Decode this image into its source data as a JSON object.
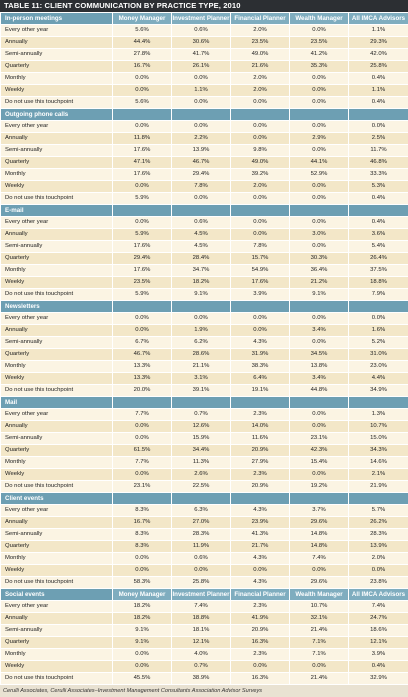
{
  "title": "TABLE 11: CLIENT COMMUNICATION BY PRACTICE TYPE, 2010",
  "columns": [
    "Money Manager",
    "Investment Planner",
    "Financial Planner",
    "Wealth Manager",
    "All IMCA Advisors"
  ],
  "sections": [
    {
      "name": "In-person meetings",
      "show_columns": true,
      "rows": [
        {
          "label": "Every other year",
          "values": [
            "5.6%",
            "0.6%",
            "2.0%",
            "0.0%",
            "1.1%"
          ]
        },
        {
          "label": "Annually",
          "values": [
            "44.4%",
            "30.6%",
            "23.5%",
            "23.5%",
            "29.3%"
          ]
        },
        {
          "label": "Semi-annually",
          "values": [
            "27.8%",
            "41.7%",
            "49.0%",
            "41.2%",
            "42.0%"
          ]
        },
        {
          "label": "Quarterly",
          "values": [
            "16.7%",
            "26.1%",
            "21.6%",
            "35.3%",
            "25.8%"
          ]
        },
        {
          "label": "Monthly",
          "values": [
            "0.0%",
            "0.0%",
            "2.0%",
            "0.0%",
            "0.4%"
          ]
        },
        {
          "label": "Weekly",
          "values": [
            "0.0%",
            "1.1%",
            "2.0%",
            "0.0%",
            "1.1%"
          ]
        },
        {
          "label": "Do not use this touchpoint",
          "values": [
            "5.6%",
            "0.0%",
            "0.0%",
            "0.0%",
            "0.4%"
          ]
        }
      ]
    },
    {
      "name": "Outgoing phone calls",
      "show_columns": false,
      "rows": [
        {
          "label": "Every other year",
          "values": [
            "0.0%",
            "0.0%",
            "0.0%",
            "0.0%",
            "0.0%"
          ]
        },
        {
          "label": "Annually",
          "values": [
            "11.8%",
            "2.2%",
            "0.0%",
            "2.9%",
            "2.5%"
          ]
        },
        {
          "label": "Semi-annually",
          "values": [
            "17.6%",
            "13.9%",
            "9.8%",
            "0.0%",
            "11.7%"
          ]
        },
        {
          "label": "Quarterly",
          "values": [
            "47.1%",
            "46.7%",
            "49.0%",
            "44.1%",
            "46.8%"
          ]
        },
        {
          "label": "Monthly",
          "values": [
            "17.6%",
            "29.4%",
            "39.2%",
            "52.9%",
            "33.3%"
          ]
        },
        {
          "label": "Weekly",
          "values": [
            "0.0%",
            "7.8%",
            "2.0%",
            "0.0%",
            "5.3%"
          ]
        },
        {
          "label": "Do not use this touchpoint",
          "values": [
            "5.9%",
            "0.0%",
            "0.0%",
            "0.0%",
            "0.4%"
          ]
        }
      ]
    },
    {
      "name": "E-mail",
      "show_columns": false,
      "rows": [
        {
          "label": "Every other year",
          "values": [
            "0.0%",
            "0.6%",
            "0.0%",
            "0.0%",
            "0.4%"
          ]
        },
        {
          "label": "Annually",
          "values": [
            "5.9%",
            "4.5%",
            "0.0%",
            "3.0%",
            "3.6%"
          ]
        },
        {
          "label": "Semi-annually",
          "values": [
            "17.6%",
            "4.5%",
            "7.8%",
            "0.0%",
            "5.4%"
          ]
        },
        {
          "label": "Quarterly",
          "values": [
            "29.4%",
            "28.4%",
            "15.7%",
            "30.3%",
            "26.4%"
          ]
        },
        {
          "label": "Monthly",
          "values": [
            "17.6%",
            "34.7%",
            "54.9%",
            "36.4%",
            "37.5%"
          ]
        },
        {
          "label": "Weekly",
          "values": [
            "23.5%",
            "18.2%",
            "17.6%",
            "21.2%",
            "18.8%"
          ]
        },
        {
          "label": "Do not use this touchpoint",
          "values": [
            "5.9%",
            "9.1%",
            "3.9%",
            "9.1%",
            "7.9%"
          ]
        }
      ]
    },
    {
      "name": "Newsletters",
      "show_columns": false,
      "rows": [
        {
          "label": "Every other year",
          "values": [
            "0.0%",
            "0.0%",
            "0.0%",
            "0.0%",
            "0.0%"
          ]
        },
        {
          "label": "Annually",
          "values": [
            "0.0%",
            "1.9%",
            "0.0%",
            "3.4%",
            "1.6%"
          ]
        },
        {
          "label": "Semi-annually",
          "values": [
            "6.7%",
            "6.2%",
            "4.3%",
            "0.0%",
            "5.2%"
          ]
        },
        {
          "label": "Quarterly",
          "values": [
            "46.7%",
            "28.6%",
            "31.9%",
            "34.5%",
            "31.0%"
          ]
        },
        {
          "label": "Monthly",
          "values": [
            "13.3%",
            "21.1%",
            "38.3%",
            "13.8%",
            "23.0%"
          ]
        },
        {
          "label": "Weekly",
          "values": [
            "13.3%",
            "3.1%",
            "6.4%",
            "3.4%",
            "4.4%"
          ]
        },
        {
          "label": "Do not use this touchpoint",
          "values": [
            "20.0%",
            "39.1%",
            "19.1%",
            "44.8%",
            "34.9%"
          ]
        }
      ]
    },
    {
      "name": "Mail",
      "show_columns": false,
      "rows": [
        {
          "label": "Every other year",
          "values": [
            "7.7%",
            "0.7%",
            "2.3%",
            "0.0%",
            "1.3%"
          ]
        },
        {
          "label": "Annually",
          "values": [
            "0.0%",
            "12.6%",
            "14.0%",
            "0.0%",
            "10.7%"
          ]
        },
        {
          "label": "Semi-annually",
          "values": [
            "0.0%",
            "15.9%",
            "11.6%",
            "23.1%",
            "15.0%"
          ]
        },
        {
          "label": "Quarterly",
          "values": [
            "61.5%",
            "34.4%",
            "20.9%",
            "42.3%",
            "34.3%"
          ]
        },
        {
          "label": "Monthly",
          "values": [
            "7.7%",
            "11.3%",
            "27.9%",
            "15.4%",
            "14.6%"
          ]
        },
        {
          "label": "Weekly",
          "values": [
            "0.0%",
            "2.6%",
            "2.3%",
            "0.0%",
            "2.1%"
          ]
        },
        {
          "label": "Do not use this touchpoint",
          "values": [
            "23.1%",
            "22.5%",
            "20.9%",
            "19.2%",
            "21.9%"
          ]
        }
      ]
    },
    {
      "name": "Client events",
      "show_columns": false,
      "rows": [
        {
          "label": "Every other year",
          "values": [
            "8.3%",
            "6.3%",
            "4.3%",
            "3.7%",
            "5.7%"
          ]
        },
        {
          "label": "Annually",
          "values": [
            "16.7%",
            "27.0%",
            "23.9%",
            "29.6%",
            "26.2%"
          ]
        },
        {
          "label": "Semi-annually",
          "values": [
            "8.3%",
            "28.3%",
            "41.3%",
            "14.8%",
            "28.3%"
          ]
        },
        {
          "label": "Quarterly",
          "values": [
            "8.3%",
            "11.9%",
            "21.7%",
            "14.8%",
            "13.9%"
          ]
        },
        {
          "label": "Monthly",
          "values": [
            "0.0%",
            "0.6%",
            "4.3%",
            "7.4%",
            "2.0%"
          ]
        },
        {
          "label": "Weekly",
          "values": [
            "0.0%",
            "0.0%",
            "0.0%",
            "0.0%",
            "0.0%"
          ]
        },
        {
          "label": "Do not use this touchpoint",
          "values": [
            "58.3%",
            "25.8%",
            "4.3%",
            "29.6%",
            "23.8%"
          ]
        }
      ]
    },
    {
      "name": "Social events",
      "show_columns": true,
      "rows": [
        {
          "label": "Every other year",
          "values": [
            "18.2%",
            "7.4%",
            "2.3%",
            "10.7%",
            "7.4%"
          ]
        },
        {
          "label": "Annually",
          "values": [
            "18.2%",
            "18.8%",
            "41.9%",
            "32.1%",
            "24.7%"
          ]
        },
        {
          "label": "Semi-annually",
          "values": [
            "9.1%",
            "18.1%",
            "20.9%",
            "21.4%",
            "18.6%"
          ]
        },
        {
          "label": "Quarterly",
          "values": [
            "9.1%",
            "12.1%",
            "16.3%",
            "7.1%",
            "12.1%"
          ]
        },
        {
          "label": "Monthly",
          "values": [
            "0.0%",
            "4.0%",
            "2.3%",
            "7.1%",
            "3.9%"
          ]
        },
        {
          "label": "Weekly",
          "values": [
            "0.0%",
            "0.7%",
            "0.0%",
            "0.0%",
            "0.4%"
          ]
        },
        {
          "label": "Do not use this touchpoint",
          "values": [
            "45.5%",
            "38.9%",
            "16.3%",
            "21.4%",
            "32.9%"
          ]
        }
      ]
    }
  ],
  "footer": "Cerulli Associates, Cerulli Associates–Investment Management Consultants Association Advisor Surveys"
}
